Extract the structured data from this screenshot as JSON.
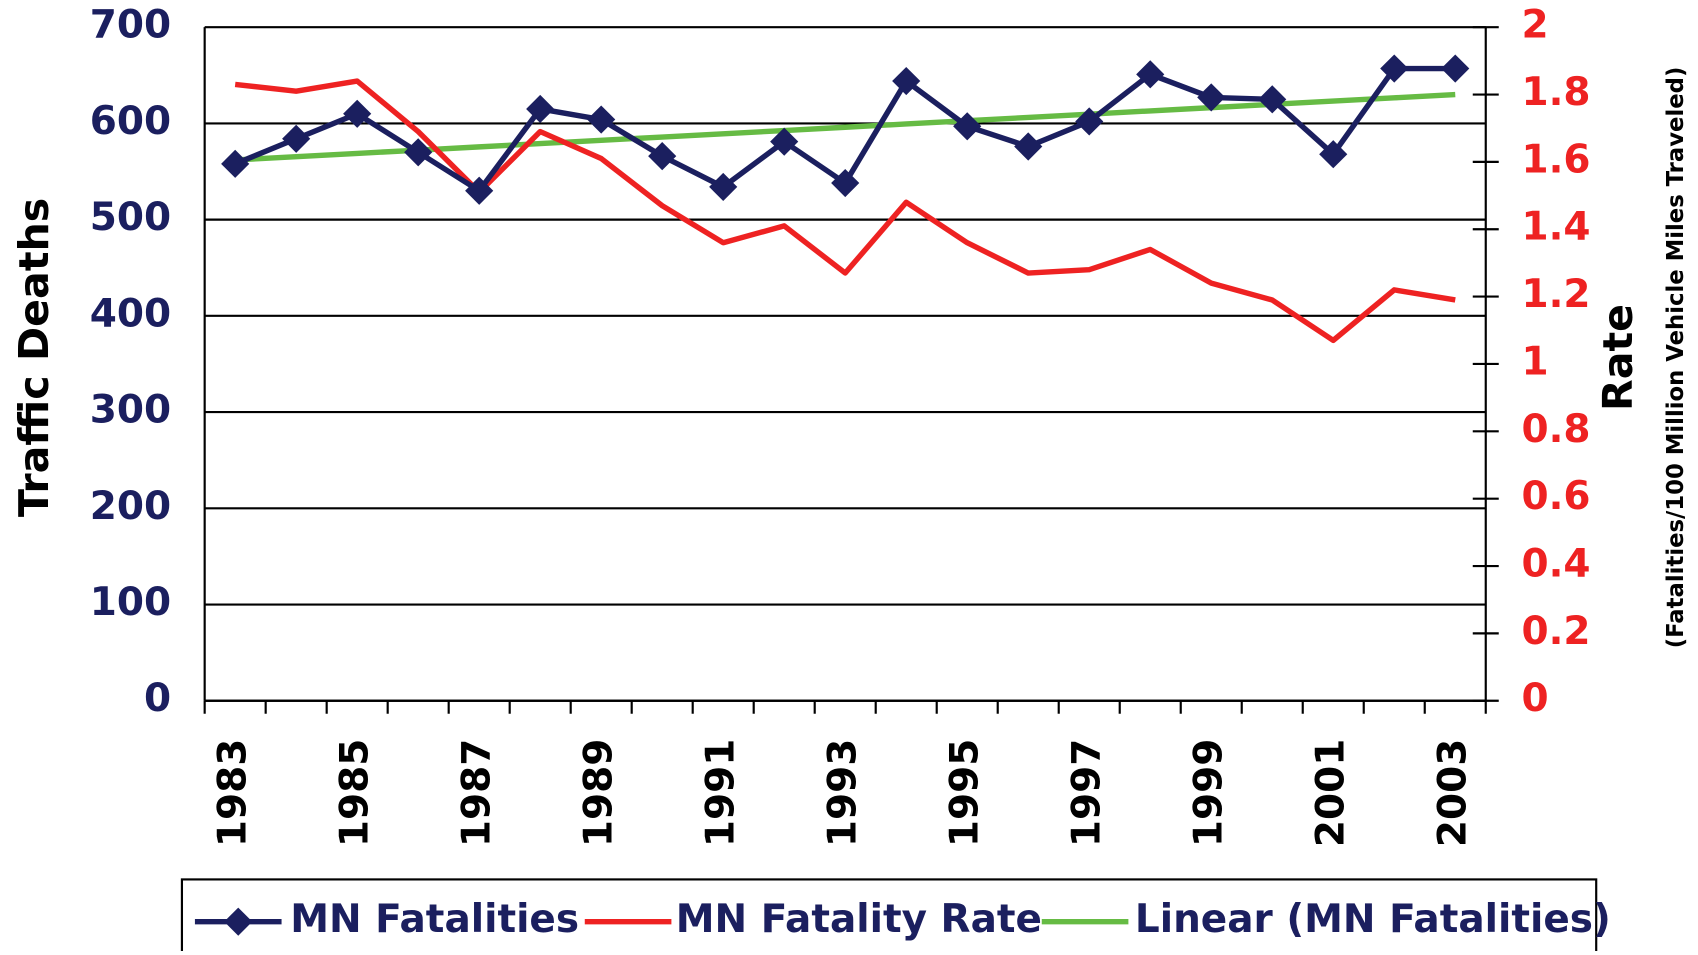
{
  "chart_data": {
    "type": "line",
    "y_label": "Traffic Deaths",
    "y2_label": "Rate",
    "y2_sublabel": "(Fatalities/100 Million Vehicle Miles Traveled)",
    "categories": [
      "1983",
      null,
      "1985",
      null,
      "1987",
      null,
      "1989",
      null,
      "1991",
      null,
      "1993",
      null,
      "1995",
      null,
      "1997",
      null,
      "1999",
      null,
      "2001",
      null,
      "2003"
    ],
    "series": [
      {
        "name": "MN Fatalities",
        "color": "#1b1f5f",
        "marker": "diamond",
        "values": [
          558,
          584,
          610,
          570,
          530,
          615,
          604,
          566,
          534,
          581,
          538,
          644,
          597,
          576,
          602,
          651,
          627,
          625,
          568,
          657,
          657
        ]
      },
      {
        "name": "MN Fatality Rate",
        "color": "#ee2222",
        "axis": "y2",
        "values": [
          1.83,
          1.81,
          1.84,
          1.69,
          1.51,
          1.69,
          1.61,
          1.47,
          1.36,
          1.41,
          1.27,
          1.48,
          1.36,
          1.27,
          1.28,
          1.34,
          1.24,
          1.19,
          1.07,
          1.22,
          1.19
        ]
      },
      {
        "name": "Linear (MN Fatalities)",
        "color": "#66bb44",
        "values": [
          562,
          565.4,
          568.8,
          572.2,
          575.6,
          579,
          582.4,
          585.8,
          589.2,
          592.6,
          596,
          599.4,
          602.8,
          606.2,
          609.6,
          613,
          616.4,
          619.8,
          623.2,
          626.6,
          630
        ]
      }
    ],
    "ylim": [
      0,
      700
    ],
    "yticks": [
      0,
      100,
      200,
      300,
      400,
      500,
      600,
      700
    ],
    "y2lim": [
      0,
      2
    ],
    "y2ticks": [
      0,
      0.2,
      0.4,
      0.6,
      0.8,
      1,
      1.2,
      1.4,
      1.6,
      1.8,
      2
    ],
    "grid": true,
    "legend": "bottom"
  }
}
